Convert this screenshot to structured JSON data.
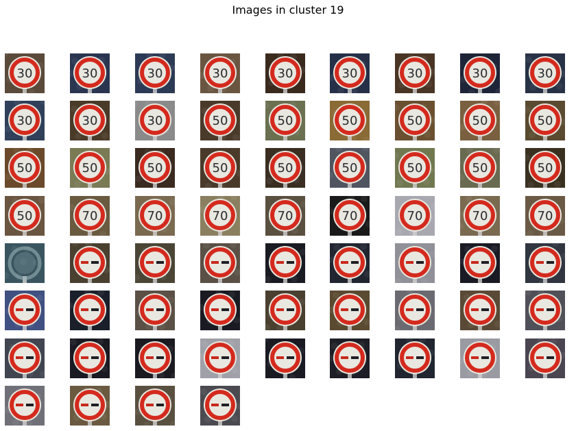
{
  "figure": {
    "title": "Images in cluster 19"
  },
  "thumbnails": [
    {
      "kind": "speed",
      "label": "30",
      "bg": "#5a4a3a"
    },
    {
      "kind": "speed",
      "label": "30",
      "bg": "#2a3550"
    },
    {
      "kind": "speed",
      "label": "30",
      "bg": "#2d3a55"
    },
    {
      "kind": "speed",
      "label": "30",
      "bg": "#6a5540"
    },
    {
      "kind": "speed",
      "label": "30",
      "bg": "#3a2a1e"
    },
    {
      "kind": "speed",
      "label": "30",
      "bg": "#253048"
    },
    {
      "kind": "speed",
      "label": "30",
      "bg": "#4a3525"
    },
    {
      "kind": "speed",
      "label": "30",
      "bg": "#1e2538"
    },
    {
      "kind": "speed",
      "label": "30",
      "bg": "#283246"
    },
    {
      "kind": "speed",
      "label": "30",
      "bg": "#30405a"
    },
    {
      "kind": "speed",
      "label": "30",
      "bg": "#4a3a28"
    },
    {
      "kind": "speed",
      "label": "30",
      "bg": "#8a8a8a"
    },
    {
      "kind": "speed",
      "label": "50",
      "bg": "#4a3a2a"
    },
    {
      "kind": "speed",
      "label": "50",
      "bg": "#6a7050"
    },
    {
      "kind": "speed",
      "label": "50",
      "bg": "#8a6a35"
    },
    {
      "kind": "speed",
      "label": "50",
      "bg": "#6a5030"
    },
    {
      "kind": "speed",
      "label": "50",
      "bg": "#7a6040"
    },
    {
      "kind": "speed",
      "label": "50",
      "bg": "#5a4a30"
    },
    {
      "kind": "speed",
      "label": "50",
      "bg": "#6a4a2a"
    },
    {
      "kind": "speed",
      "label": "50",
      "bg": "#7a7a55"
    },
    {
      "kind": "speed",
      "label": "50",
      "bg": "#3a2a20"
    },
    {
      "kind": "speed",
      "label": "50",
      "bg": "#4a3a2a"
    },
    {
      "kind": "speed",
      "label": "50",
      "bg": "#3a2e22"
    },
    {
      "kind": "speed",
      "label": "50",
      "bg": "#505560"
    },
    {
      "kind": "speed",
      "label": "50",
      "bg": "#707850"
    },
    {
      "kind": "speed",
      "label": "50",
      "bg": "#6a6a50"
    },
    {
      "kind": "speed",
      "label": "50",
      "bg": "#3a3020"
    },
    {
      "kind": "speed",
      "label": "50",
      "bg": "#6a5540"
    },
    {
      "kind": "speed",
      "label": "70",
      "bg": "#6a5a40"
    },
    {
      "kind": "speed",
      "label": "70",
      "bg": "#7a6a50"
    },
    {
      "kind": "speed",
      "label": "70",
      "bg": "#8a8060"
    },
    {
      "kind": "speed",
      "label": "70",
      "bg": "#5a5040"
    },
    {
      "kind": "speed",
      "label": "70",
      "bg": "#1a1a1a"
    },
    {
      "kind": "speed",
      "label": "70",
      "bg": "#a8a8b0"
    },
    {
      "kind": "speed",
      "label": "70",
      "bg": "#7a6a50"
    },
    {
      "kind": "speed",
      "label": "70",
      "bg": "#6a5a45"
    },
    {
      "kind": "blur",
      "label": "",
      "bg": "#3a5560"
    },
    {
      "kind": "noovertake",
      "label": "",
      "bg": "#4a4030"
    },
    {
      "kind": "noovertake",
      "label": "",
      "bg": "#4a4535"
    },
    {
      "kind": "noovertake",
      "label": "",
      "bg": "#5a5045"
    },
    {
      "kind": "noovertake",
      "label": "",
      "bg": "#1a1a22"
    },
    {
      "kind": "noovertake",
      "label": "",
      "bg": "#202530"
    },
    {
      "kind": "noovertake",
      "label": "",
      "bg": "#909098"
    },
    {
      "kind": "noovertake",
      "label": "",
      "bg": "#1a1a25"
    },
    {
      "kind": "noovertake",
      "label": "",
      "bg": "#303540"
    },
    {
      "kind": "noovertake",
      "label": "",
      "bg": "#405080"
    },
    {
      "kind": "noovertake",
      "label": "",
      "bg": "#1a1f2a"
    },
    {
      "kind": "noovertake",
      "label": "",
      "bg": "#5a5045"
    },
    {
      "kind": "noovertake",
      "label": "",
      "bg": "#1a1a22"
    },
    {
      "kind": "noovertake",
      "label": "",
      "bg": "#4a4030"
    },
    {
      "kind": "noovertake",
      "label": "",
      "bg": "#5a4a30"
    },
    {
      "kind": "noovertake",
      "label": "",
      "bg": "#6a6a70"
    },
    {
      "kind": "noovertake",
      "label": "",
      "bg": "#5a4a35"
    },
    {
      "kind": "noovertake",
      "label": "",
      "bg": "#505058"
    },
    {
      "kind": "noovertake",
      "label": "",
      "bg": "#404550"
    },
    {
      "kind": "noovertake",
      "label": "",
      "bg": "#1a1a22"
    },
    {
      "kind": "noovertake",
      "label": "",
      "bg": "#1a1a20"
    },
    {
      "kind": "noovertake",
      "label": "",
      "bg": "#a0a0a8"
    },
    {
      "kind": "noovertake",
      "label": "",
      "bg": "#1a1a22"
    },
    {
      "kind": "noovertake",
      "label": "",
      "bg": "#1e1e26"
    },
    {
      "kind": "noovertake",
      "label": "",
      "bg": "#202530"
    },
    {
      "kind": "noovertake",
      "label": "",
      "bg": "#9a9aa2"
    },
    {
      "kind": "noovertake",
      "label": "",
      "bg": "#4a4550"
    },
    {
      "kind": "noovertake",
      "label": "",
      "bg": "#707078"
    },
    {
      "kind": "noovertake",
      "label": "",
      "bg": "#6a5a40"
    },
    {
      "kind": "noovertake",
      "label": "",
      "bg": "#5a5040"
    },
    {
      "kind": "noovertake",
      "label": "",
      "bg": "#4a4a50"
    }
  ]
}
